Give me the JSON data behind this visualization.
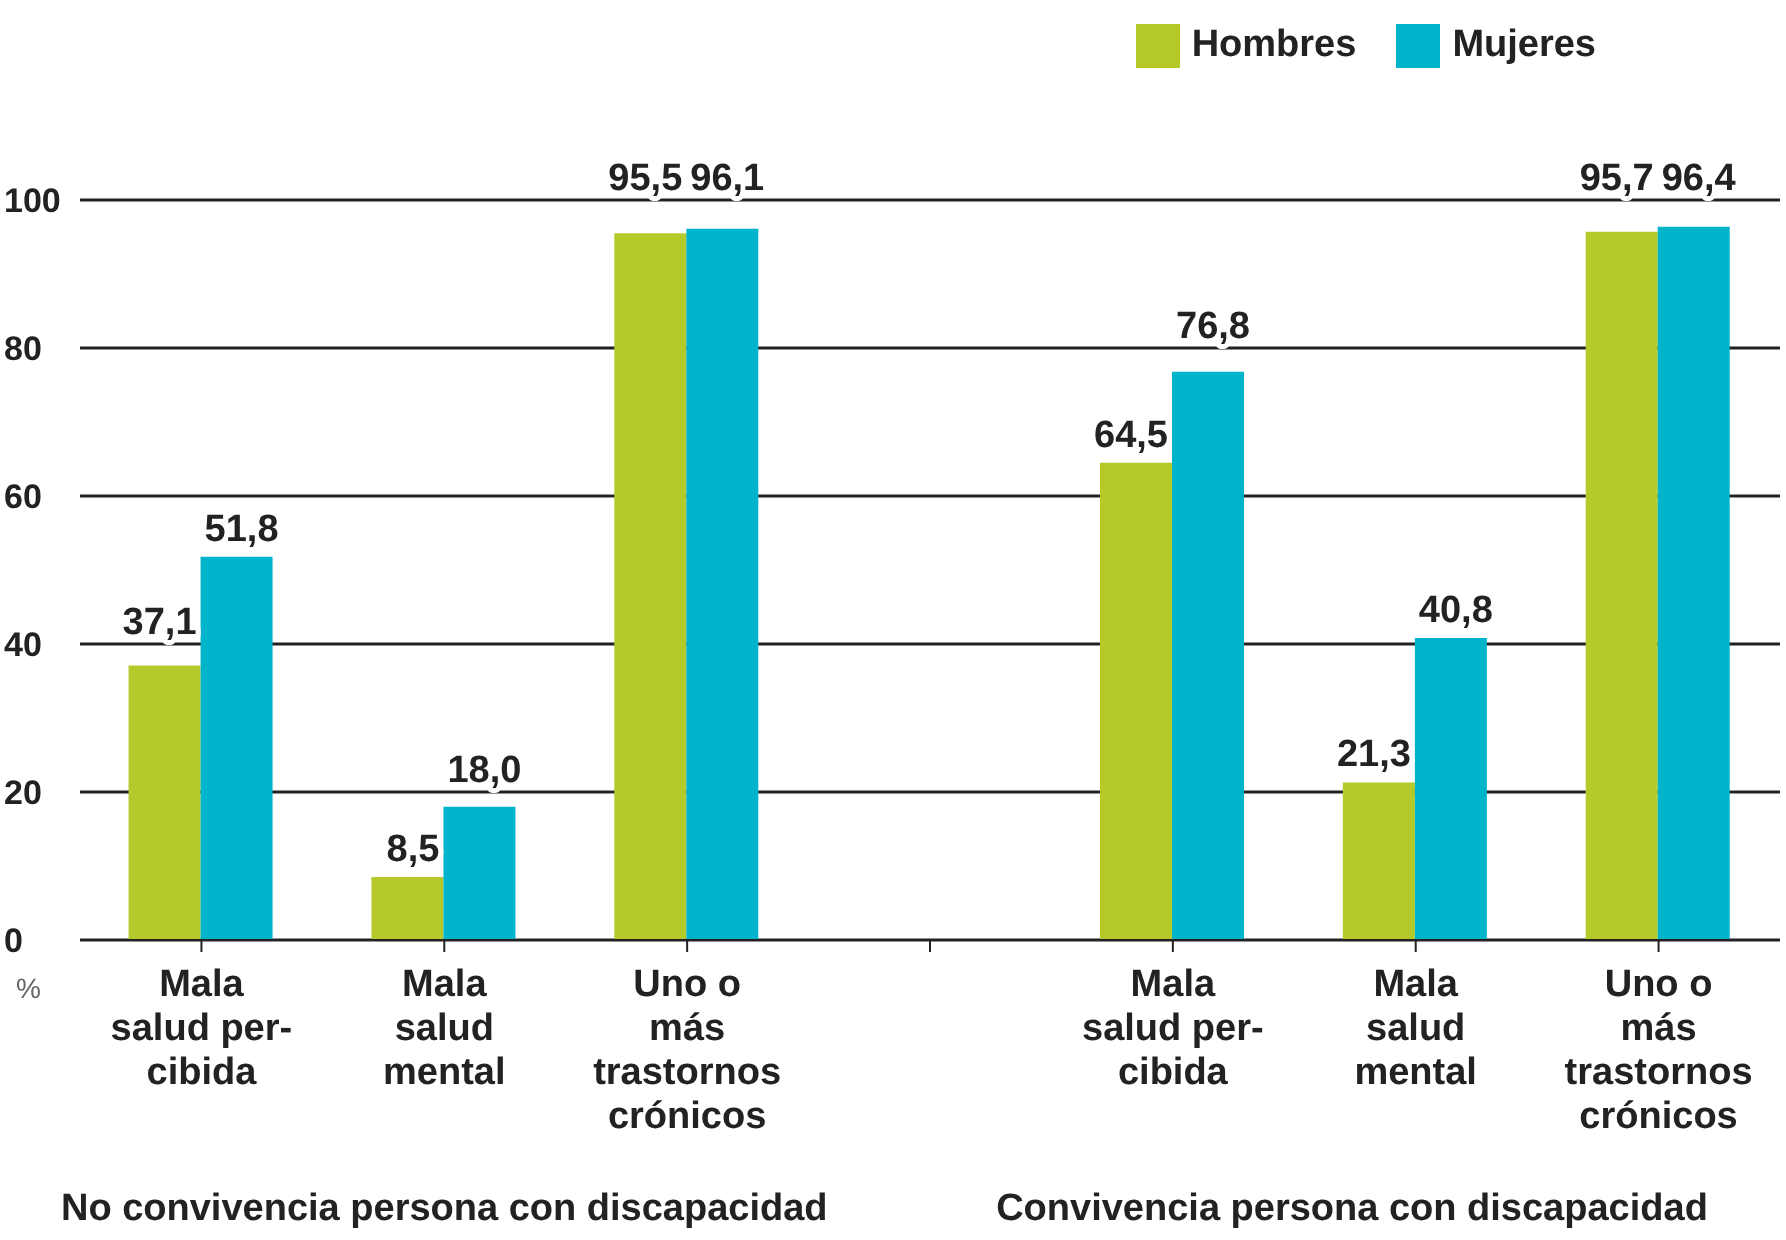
{
  "chart_data": {
    "type": "bar",
    "ylabel": "%",
    "categories": [
      "Mala\nsalud per-\ncibida",
      "Mala\nsalud\nmental",
      "Uno o\nmás\ntrastornos\ncrónicos",
      null,
      "Mala\nsalud per-\ncibida",
      "Mala\nsalud\nmental",
      "Uno o\nmás\ntrastornos\ncrónicos"
    ],
    "series": [
      {
        "name": "Hombres",
        "color": "#b5c92a",
        "values": [
          37.1,
          8.5,
          95.5,
          null,
          64.5,
          21.3,
          95.7
        ],
        "value_labels": [
          "37,1",
          "8,5",
          "95,5",
          null,
          "64,5",
          "21,3",
          "95,7"
        ]
      },
      {
        "name": "Mujeres",
        "color": "#00b4cc",
        "values": [
          51.8,
          18.0,
          96.1,
          null,
          76.8,
          40.8,
          96.4
        ],
        "value_labels": [
          "51,8",
          "18,0",
          "96,1",
          null,
          "76,8",
          "40,8",
          "96,4"
        ]
      }
    ],
    "ylim": [
      0,
      100
    ],
    "yticks": [
      0,
      20,
      40,
      60,
      80,
      100
    ],
    "grid": "y",
    "legend": "top right",
    "annotations": [
      "No convivencia persona con discapacidad",
      "Convivencia persona con discapacidad"
    ]
  }
}
